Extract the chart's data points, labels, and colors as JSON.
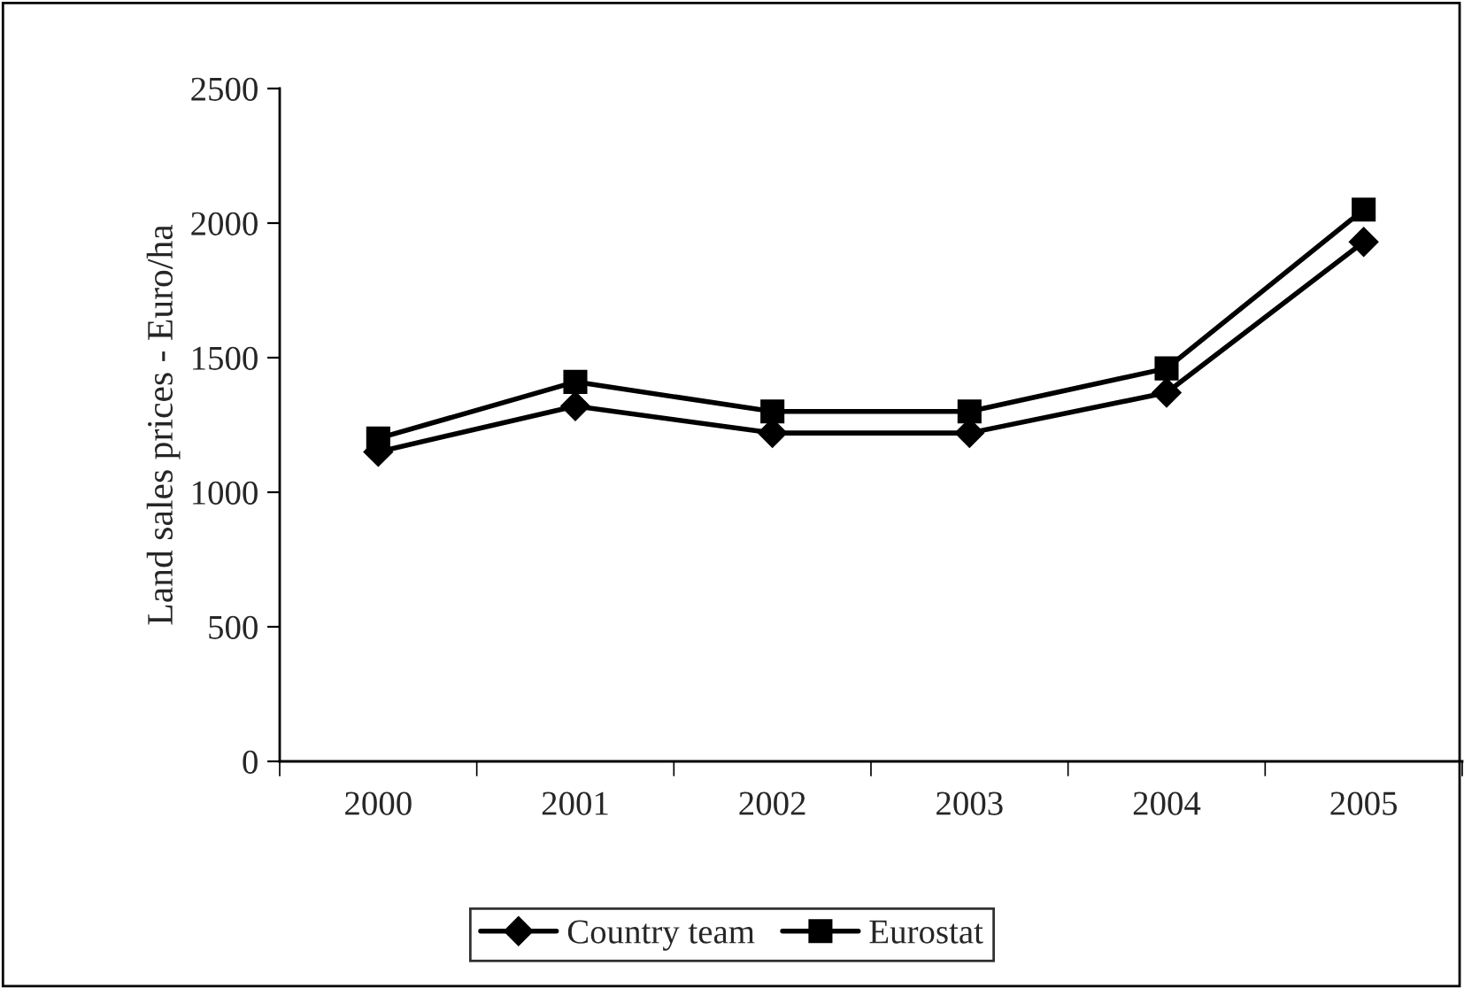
{
  "chart_data": {
    "type": "line",
    "ylabel": "Land sales prices - Euro/ha",
    "categories": [
      "2000",
      "2001",
      "2002",
      "2003",
      "2004",
      "2005"
    ],
    "series": [
      {
        "name": "Country team",
        "color": "#000000",
        "marker": "diamond",
        "values": [
          1150,
          1320,
          1220,
          1220,
          1370,
          1930
        ]
      },
      {
        "name": "Eurostat",
        "color": "#000000",
        "marker": "square",
        "values": [
          1200,
          1410,
          1300,
          1300,
          1460,
          2050
        ]
      }
    ],
    "ylim": [
      0,
      2500
    ],
    "yticks": [
      0,
      500,
      1000,
      1500,
      2000,
      2500
    ],
    "grid": false,
    "legend": "bottom"
  }
}
